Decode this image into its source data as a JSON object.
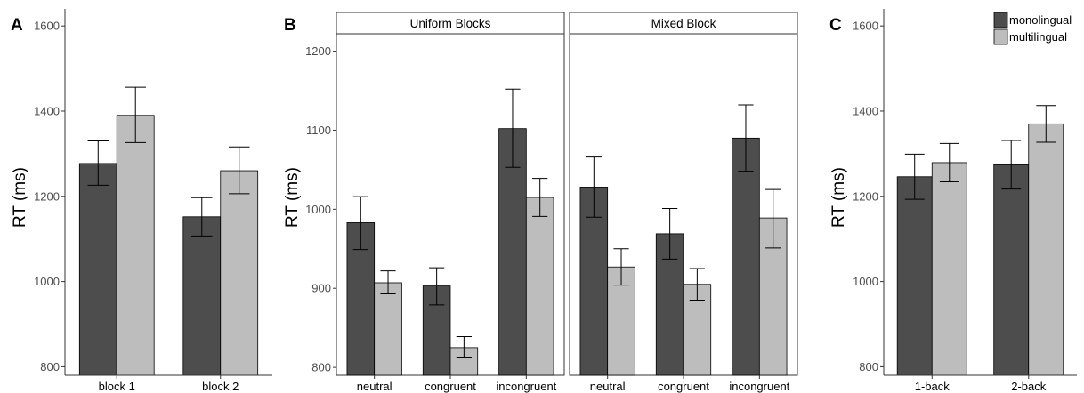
{
  "colors": {
    "monolingual": "#4d4d4d",
    "multilingual": "#bdbdbd",
    "outline": "#000000",
    "axis": "#333333"
  },
  "legend": {
    "position": "top-right",
    "entries": [
      {
        "key": "monolingual",
        "label": "monolingual"
      },
      {
        "key": "multilingual",
        "label": "multilingual"
      }
    ]
  },
  "chart_data": [
    {
      "panel": "A",
      "type": "bar",
      "ylabel": "RT (ms)",
      "ylim": [
        780,
        1640
      ],
      "yticks": [
        800,
        1000,
        1200,
        1400,
        1600
      ],
      "categories": [
        "block 1",
        "block 2"
      ],
      "series": [
        {
          "name": "monolingual",
          "values": [
            1277,
            1152
          ],
          "error": [
            [
              1226,
              1330
            ],
            [
              1107,
              1197
            ]
          ]
        },
        {
          "name": "multilingual",
          "values": [
            1390,
            1260
          ],
          "error": [
            [
              1326,
              1456
            ],
            [
              1206,
              1316
            ]
          ]
        }
      ],
      "grid": false
    },
    {
      "panel": "B",
      "type": "bar",
      "ylabel": "RT (ms)",
      "ylim": [
        790,
        1222
      ],
      "yticks": [
        800,
        900,
        1000,
        1100,
        1200
      ],
      "facets": [
        {
          "label": "Uniform Blocks",
          "categories": [
            "neutral",
            "congruent",
            "incongruent"
          ],
          "series": [
            {
              "name": "monolingual",
              "values": [
                983,
                903,
                1102
              ],
              "error": [
                [
                  949,
                  1016
                ],
                [
                  879,
                  926
                ],
                [
                  1053,
                  1152
                ]
              ]
            },
            {
              "name": "multilingual",
              "values": [
                907,
                825,
                1015
              ],
              "error": [
                [
                  893,
                  922
                ],
                [
                  812,
                  839
                ],
                [
                  991,
                  1039
                ]
              ]
            }
          ]
        },
        {
          "label": "Mixed Block",
          "categories": [
            "neutral",
            "congruent",
            "incongruent"
          ],
          "series": [
            {
              "name": "monolingual",
              "values": [
                1028,
                969,
                1090
              ],
              "error": [
                [
                  990,
                  1066
                ],
                [
                  937,
                  1001
                ],
                [
                  1048,
                  1132
                ]
              ]
            },
            {
              "name": "multilingual",
              "values": [
                927,
                905,
                989
              ],
              "error": [
                [
                  904,
                  950
                ],
                [
                  885,
                  925
                ],
                [
                  951,
                  1025
                ]
              ]
            }
          ]
        }
      ],
      "grid": false
    },
    {
      "panel": "C",
      "type": "bar",
      "ylabel": "RT (ms)",
      "ylim": [
        780,
        1640
      ],
      "yticks": [
        800,
        1000,
        1200,
        1400,
        1600
      ],
      "categories": [
        "1-back",
        "2-back"
      ],
      "series": [
        {
          "name": "monolingual",
          "values": [
            1246,
            1274
          ],
          "error": [
            [
              1193,
              1299
            ],
            [
              1217,
              1331
            ]
          ]
        },
        {
          "name": "multilingual",
          "values": [
            1279,
            1370
          ],
          "error": [
            [
              1234,
              1324
            ],
            [
              1327,
              1413
            ]
          ]
        }
      ],
      "grid": false
    }
  ]
}
